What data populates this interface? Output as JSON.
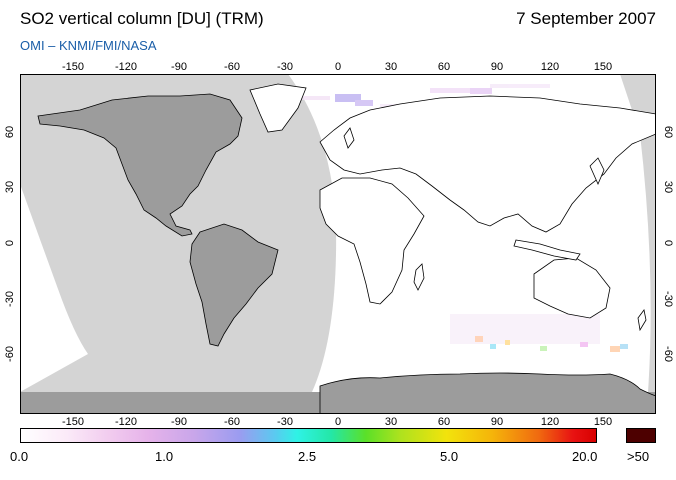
{
  "header": {
    "title": "SO2 vertical column [DU] (TRM)",
    "date": "7 September 2007",
    "subtitle": "OMI  –  KNMI/FMI/NASA"
  },
  "map": {
    "projection": "plate-carree",
    "lon_ticks": [
      "-150",
      "-120",
      "-90",
      "-60",
      "-30",
      "0",
      "30",
      "60",
      "90",
      "120",
      "150"
    ],
    "lat_ticks": [
      "60",
      "30",
      "0",
      "-30",
      "-60"
    ],
    "colors": {
      "night_shade": "#d4d4d4",
      "night_land": "#9c9c9c",
      "coastline": "#000000",
      "data_background": "#ffffff"
    }
  },
  "colorbar": {
    "labels": [
      "0.0",
      "1.0",
      "2.5",
      "5.0",
      "20.0"
    ],
    "overflow_label": ">50",
    "overflow_color": "#4d0000"
  }
}
